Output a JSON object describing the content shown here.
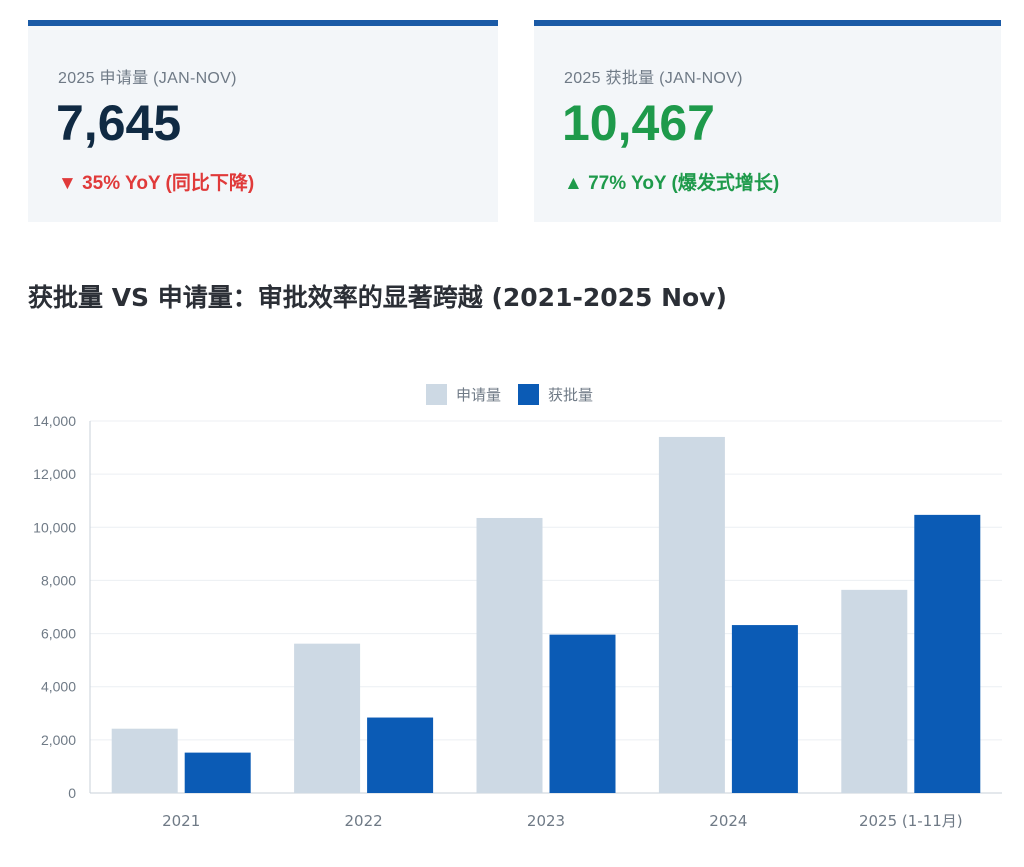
{
  "cards": [
    {
      "label": "2025 申请量 (JAN-NOV)",
      "value": "7,645",
      "value_color": "#102a43",
      "change_icon": "triangle-down-icon",
      "change_arrow": "▼",
      "change_text": "35% YoY (同比下降)",
      "change_color": "#e03a3a"
    },
    {
      "label": "2025 获批量 (JAN-NOV)",
      "value": "10,467",
      "value_color": "#1e9a4b",
      "change_icon": "triangle-up-icon",
      "change_arrow": "▲",
      "change_text": "77% YoY (爆发式增长)",
      "change_color": "#1e9a4b"
    }
  ],
  "section_title": "获批量 VS 申请量：审批效率的显著跨越 (2021-2025 Nov)",
  "colors": {
    "accent": "#1a5aa6",
    "applications": "#cdd9e4",
    "approvals": "#0b5bb5"
  },
  "chart_data": {
    "type": "bar",
    "categories": [
      "2021",
      "2022",
      "2023",
      "2024",
      "2025 (1-11月)"
    ],
    "series": [
      {
        "name": "申请量",
        "color": "#cdd9e4",
        "values": [
          2420,
          5620,
          10350,
          13400,
          7645
        ]
      },
      {
        "name": "获批量",
        "color": "#0b5bb5",
        "values": [
          1520,
          2840,
          5960,
          6320,
          10467
        ]
      }
    ],
    "ylim": [
      0,
      14000
    ],
    "yticks": [
      "0",
      "2,000",
      "4,000",
      "6,000",
      "8,000",
      "10,000",
      "12,000",
      "14,000"
    ],
    "ytick_values": [
      0,
      2000,
      4000,
      6000,
      8000,
      10000,
      12000,
      14000
    ],
    "grid": true,
    "legend_position": "top-center"
  }
}
